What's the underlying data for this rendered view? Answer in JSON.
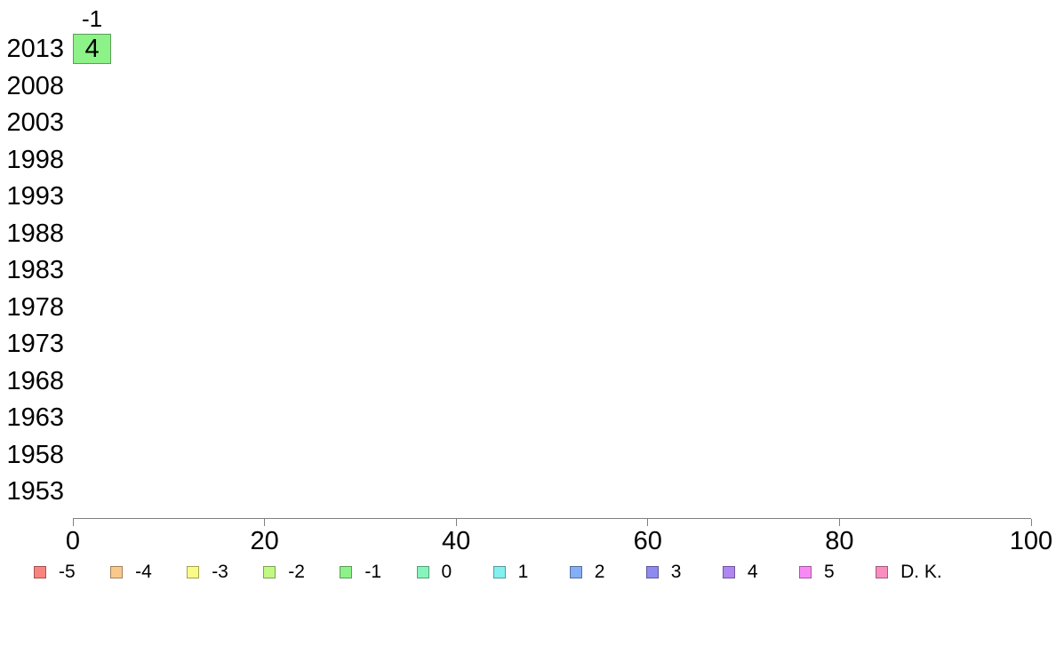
{
  "chart_data": {
    "type": "bar",
    "orientation": "horizontal",
    "stacked": true,
    "title": "",
    "xlabel": "",
    "ylabel": "",
    "y_categories": [
      "2013",
      "2008",
      "2003",
      "1998",
      "1993",
      "1988",
      "1983",
      "1978",
      "1973",
      "1968",
      "1963",
      "1958",
      "1953"
    ],
    "x_axis": {
      "min": 0,
      "max": 100,
      "ticks": [
        0,
        20,
        40,
        60,
        80,
        100
      ],
      "tick_labels": [
        "0",
        "20",
        "40",
        "60",
        "80",
        "100"
      ]
    },
    "grid": "off",
    "bars": [
      {
        "year": "2013",
        "top_label": "-1",
        "segments": [
          {
            "category": "-1",
            "value": 4,
            "value_label": "4",
            "color": "#8DF288"
          }
        ]
      }
    ],
    "legend": {
      "position": "bottom",
      "items": [
        {
          "label": "-5",
          "color": "#F9837E"
        },
        {
          "label": "-4",
          "color": "#FAC88A"
        },
        {
          "label": "-3",
          "color": "#FAFA86"
        },
        {
          "label": "-2",
          "color": "#C2F884"
        },
        {
          "label": "-1",
          "color": "#8DF288"
        },
        {
          "label": "0",
          "color": "#86F5BB"
        },
        {
          "label": "1",
          "color": "#84EFEF"
        },
        {
          "label": "2",
          "color": "#84AEF5"
        },
        {
          "label": "3",
          "color": "#8E8AF0"
        },
        {
          "label": "4",
          "color": "#AF86F2"
        },
        {
          "label": "5",
          "color": "#F98AF5"
        },
        {
          "label": "D. K.",
          "color": "#F88DC0"
        }
      ]
    },
    "colors": {
      "axis": "#808080",
      "text": "#000000",
      "background": "#FFFFFF"
    }
  }
}
